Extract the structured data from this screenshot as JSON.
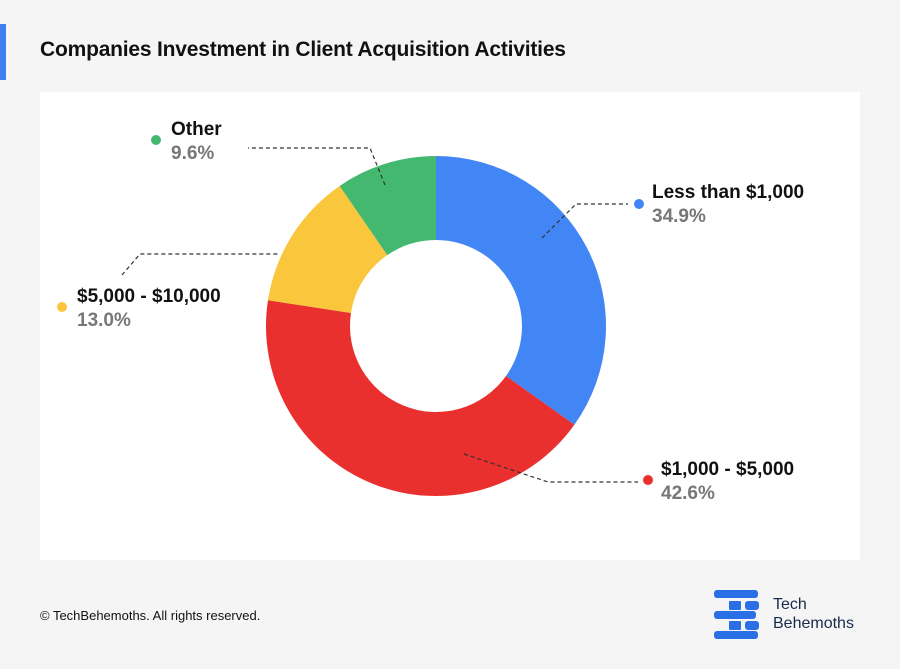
{
  "header": {
    "title": "Companies Investment in Client Acquisition Activities"
  },
  "colors": {
    "accent": "#3f7ff0",
    "blue": "#4285f4",
    "red": "#ea2f2f",
    "yellow": "#f9c63c",
    "green": "#45b86f",
    "brand": "#2b6fe6"
  },
  "chart_data": {
    "type": "pie",
    "variant": "donut",
    "title": "Companies Investment in Client Acquisition Activities",
    "series": [
      {
        "name": "Less than $1,000",
        "value": 34.9,
        "label": "34.9%",
        "color": "#4285f4"
      },
      {
        "name": "$1,000 - $5,000",
        "value": 42.6,
        "label": "42.6%",
        "color": "#ea2f2f"
      },
      {
        "name": "$5,000 - $10,000",
        "value": 13.0,
        "label": "13.0%",
        "color": "#f9c63c"
      },
      {
        "name": "Other",
        "value": 9.6,
        "label": "9.6%",
        "color": "#45b86f"
      }
    ],
    "start": "top",
    "direction": "clockwise"
  },
  "footer": {
    "copyright": "© TechBehemoths. All rights reserved."
  },
  "brand": {
    "line1": "Tech",
    "line2": "Behemoths",
    "logo_icon": "techbehemoths-logo-icon"
  }
}
